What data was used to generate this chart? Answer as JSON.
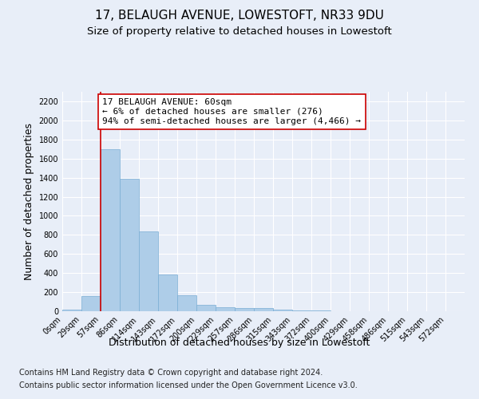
{
  "title": "17, BELAUGH AVENUE, LOWESTOFT, NR33 9DU",
  "subtitle": "Size of property relative to detached houses in Lowestoft",
  "xlabel": "Distribution of detached houses by size in Lowestoft",
  "ylabel": "Number of detached properties",
  "bar_color": "#aecde8",
  "bar_edge_color": "#7aadd4",
  "annotation_line_color": "#cc0000",
  "annotation_box_edge": "#cc0000",
  "background_color": "#e8eef8",
  "plot_bg_color": "#e8eef8",
  "grid_color": "#ffffff",
  "tick_labels": [
    "0sqm",
    "29sqm",
    "57sqm",
    "86sqm",
    "114sqm",
    "143sqm",
    "172sqm",
    "200sqm",
    "229sqm",
    "257sqm",
    "286sqm",
    "315sqm",
    "343sqm",
    "372sqm",
    "400sqm",
    "429sqm",
    "458sqm",
    "486sqm",
    "515sqm",
    "543sqm",
    "572sqm"
  ],
  "bar_heights": [
    20,
    155,
    1700,
    1390,
    840,
    385,
    165,
    65,
    40,
    30,
    30,
    20,
    10,
    5,
    3,
    2,
    1,
    1,
    0,
    0,
    0
  ],
  "ylim": [
    0,
    2300
  ],
  "yticks": [
    0,
    200,
    400,
    600,
    800,
    1000,
    1200,
    1400,
    1600,
    1800,
    2000,
    2200
  ],
  "property_line_x": 2.0,
  "annotation_text_line1": "17 BELAUGH AVENUE: 60sqm",
  "annotation_text_line2": "← 6% of detached houses are smaller (276)",
  "annotation_text_line3": "94% of semi-detached houses are larger (4,466) →",
  "footer_line1": "Contains HM Land Registry data © Crown copyright and database right 2024.",
  "footer_line2": "Contains public sector information licensed under the Open Government Licence v3.0.",
  "title_fontsize": 11,
  "subtitle_fontsize": 9.5,
  "ylabel_fontsize": 9,
  "xlabel_fontsize": 9,
  "tick_fontsize": 7,
  "annotation_fontsize": 8,
  "footer_fontsize": 7
}
